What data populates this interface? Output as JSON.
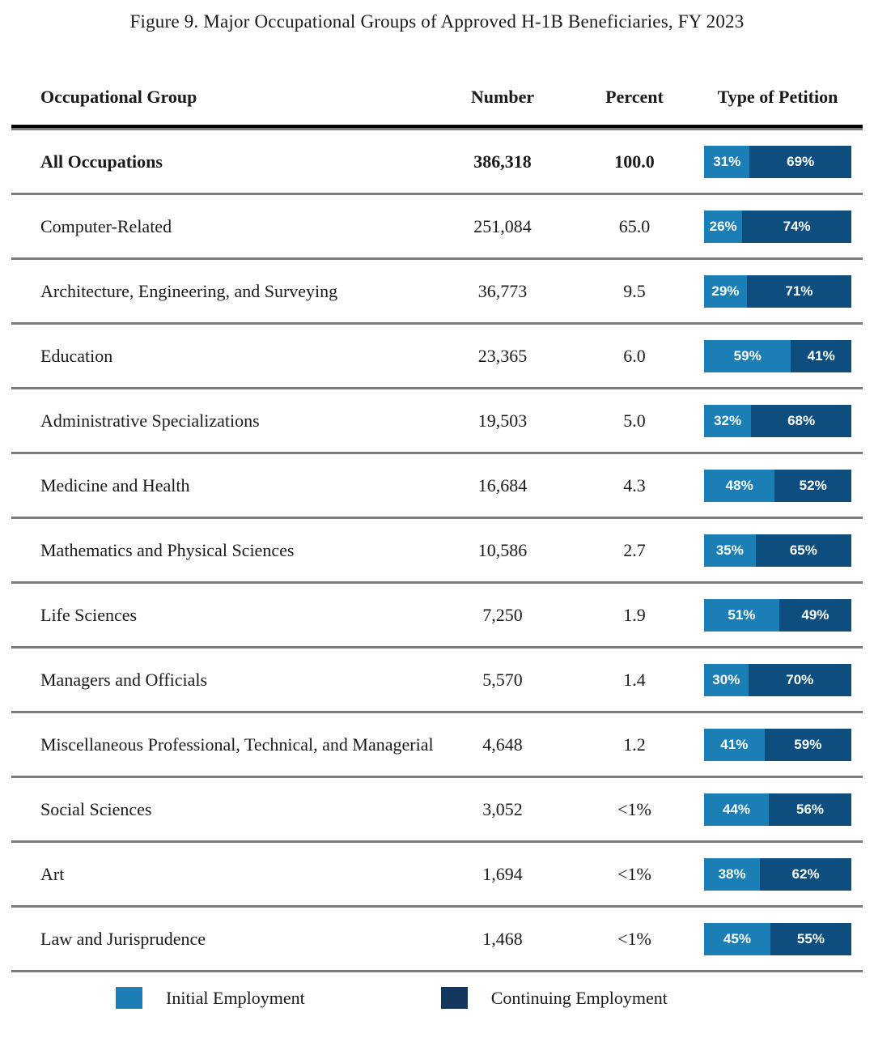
{
  "title": "Figure 9. Major Occupational Groups of Approved H-1B Beneficiaries, FY 2023",
  "header": {
    "group": "Occupational Group",
    "number": "Number",
    "percent": "Percent",
    "petition": "Type of Petition"
  },
  "colors": {
    "initial": "#1B7FB5",
    "continuing": "#0E4E7E",
    "legend_continuing": "#12365E",
    "header_rule": "#000000",
    "row_rule": "#7B7B7B",
    "bar_label_text": "#FFFFFF"
  },
  "legend": {
    "initial_label": "Initial Employment",
    "continuing_label": "Continuing Employment"
  },
  "rows": [
    {
      "group": "All Occupations",
      "number": "386,318",
      "percent": "100.0",
      "initial": 31,
      "continuing": 69,
      "initial_label": "31%",
      "continuing_label": "69%",
      "bold": true
    },
    {
      "group": "Computer-Related",
      "number": "251,084",
      "percent": "65.0",
      "initial": 26,
      "continuing": 74,
      "initial_label": "26%",
      "continuing_label": "74%",
      "bold": false
    },
    {
      "group": "Architecture, Engineering, and Surveying",
      "number": "36,773",
      "percent": "9.5",
      "initial": 29,
      "continuing": 71,
      "initial_label": "29%",
      "continuing_label": "71%",
      "bold": false
    },
    {
      "group": "Education",
      "number": "23,365",
      "percent": "6.0",
      "initial": 59,
      "continuing": 41,
      "initial_label": "59%",
      "continuing_label": "41%",
      "bold": false
    },
    {
      "group": "Administrative Specializations",
      "number": "19,503",
      "percent": "5.0",
      "initial": 32,
      "continuing": 68,
      "initial_label": "32%",
      "continuing_label": "68%",
      "bold": false
    },
    {
      "group": "Medicine and Health",
      "number": "16,684",
      "percent": "4.3",
      "initial": 48,
      "continuing": 52,
      "initial_label": "48%",
      "continuing_label": "52%",
      "bold": false
    },
    {
      "group": "Mathematics and Physical Sciences",
      "number": "10,586",
      "percent": "2.7",
      "initial": 35,
      "continuing": 65,
      "initial_label": "35%",
      "continuing_label": "65%",
      "bold": false
    },
    {
      "group": "Life Sciences",
      "number": "7,250",
      "percent": "1.9",
      "initial": 51,
      "continuing": 49,
      "initial_label": "51%",
      "continuing_label": "49%",
      "bold": false
    },
    {
      "group": "Managers and Officials",
      "number": "5,570",
      "percent": "1.4",
      "initial": 30,
      "continuing": 70,
      "initial_label": "30%",
      "continuing_label": "70%",
      "bold": false
    },
    {
      "group": "Miscellaneous Professional, Technical, and Managerial",
      "number": "4,648",
      "percent": "1.2",
      "initial": 41,
      "continuing": 59,
      "initial_label": "41%",
      "continuing_label": "59%",
      "bold": false
    },
    {
      "group": "Social Sciences",
      "number": "3,052",
      "percent": "<1%",
      "initial": 44,
      "continuing": 56,
      "initial_label": "44%",
      "continuing_label": "56%",
      "bold": false
    },
    {
      "group": "Art",
      "number": "1,694",
      "percent": "<1%",
      "initial": 38,
      "continuing": 62,
      "initial_label": "38%",
      "continuing_label": "62%",
      "bold": false
    },
    {
      "group": "Law and Jurisprudence",
      "number": "1,468",
      "percent": "<1%",
      "initial": 45,
      "continuing": 55,
      "initial_label": "45%",
      "continuing_label": "55%",
      "bold": false
    }
  ],
  "chart_data": {
    "type": "bar",
    "subtype": "horizontal-100pct-stacked-in-table",
    "title": "Figure 9. Major Occupational Groups of Approved H-1B Beneficiaries, FY 2023",
    "columns": [
      "Occupational Group",
      "Number",
      "Percent",
      "Type of Petition"
    ],
    "categories": [
      "All Occupations",
      "Computer-Related",
      "Architecture, Engineering, and Surveying",
      "Education",
      "Administrative Specializations",
      "Medicine and Health",
      "Mathematics and Physical Sciences",
      "Life Sciences",
      "Managers and Officials",
      "Miscellaneous Professional, Technical, and Managerial",
      "Social Sciences",
      "Art",
      "Law and Jurisprudence"
    ],
    "number": [
      "386,318",
      "251,084",
      "36,773",
      "23,365",
      "19,503",
      "16,684",
      "10,586",
      "7,250",
      "5,570",
      "4,648",
      "3,052",
      "1,694",
      "1,468"
    ],
    "percent_of_total": [
      "100.0",
      "65.0",
      "9.5",
      "6.0",
      "5.0",
      "4.3",
      "2.7",
      "1.9",
      "1.4",
      "1.2",
      "<1%",
      "<1%",
      "<1%"
    ],
    "series": [
      {
        "name": "Initial Employment",
        "color": "#1B7FB5",
        "values": [
          31,
          26,
          29,
          59,
          32,
          48,
          35,
          51,
          30,
          41,
          44,
          38,
          45
        ]
      },
      {
        "name": "Continuing Employment",
        "color": "#0E4E7E",
        "values": [
          69,
          74,
          71,
          41,
          68,
          52,
          65,
          49,
          70,
          59,
          56,
          62,
          55
        ]
      }
    ],
    "value_unit": "percent",
    "xlim": [
      0,
      100
    ],
    "legend_position": "bottom",
    "grid": false
  }
}
